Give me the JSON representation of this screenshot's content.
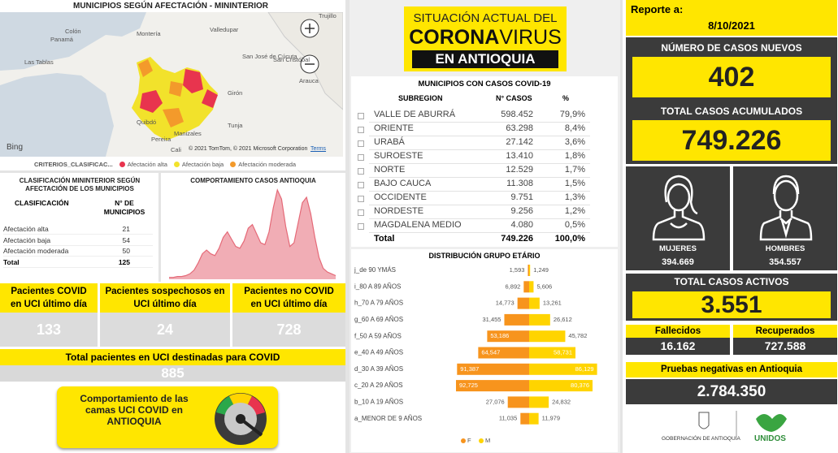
{
  "map": {
    "title": "MUNICIPIOS SEGÚN AFECTACIÓN - MININTERIOR",
    "places": [
      "Trujillo",
      "Colón",
      "Panamá",
      "Las Tablas",
      "Montería",
      "Valledupar",
      "San José de Cúcuta",
      "San Cristóbal",
      "Arauca",
      "Girón",
      "Quibdó",
      "Tunja",
      "Pereira",
      "Manizales",
      "Cali"
    ],
    "bing": "Bing",
    "attribution": "© 2021 TomTom, © 2021 Microsoft Corporation",
    "terms": "Terms",
    "legend_title": "CRITERIOS_CLASIFICAC...",
    "legend": [
      {
        "name": "Afectación alta",
        "color": "#e8344e"
      },
      {
        "name": "Afectación baja",
        "color": "#f2e22b"
      },
      {
        "name": "Afectación moderada",
        "color": "#f39a2b"
      }
    ]
  },
  "classification": {
    "title": "CLASIFICACIÓN MININTERIOR SEGÚN AFECTACIÓN DE LOS MUNICIPIOS",
    "headers": [
      "CLASIFICACIÓN",
      "N° DE MUNICIPIOS"
    ],
    "rows": [
      [
        "Afectación alta",
        "21"
      ],
      [
        "Afectación baja",
        "54"
      ],
      [
        "Afectación moderada",
        "50"
      ],
      [
        "Total",
        "125"
      ]
    ]
  },
  "chart_data": [
    {
      "type": "area",
      "title": "COMPORTAMIENTO CASOS ANTIOQUIA",
      "color": "#e56a78",
      "values": [
        2,
        2,
        3,
        3,
        4,
        6,
        10,
        18,
        28,
        32,
        28,
        26,
        34,
        46,
        52,
        44,
        36,
        34,
        42,
        56,
        60,
        50,
        40,
        38,
        52,
        78,
        98,
        88,
        58,
        36,
        40,
        62,
        84,
        90,
        72,
        46,
        24,
        12,
        8,
        6,
        4
      ]
    },
    {
      "type": "pyramid",
      "title": "DISTRIBUCIÓN GRUPO ETÁRIO",
      "categories": [
        "j_de 90 YMÁS",
        "i_80 A 89 AÑOS",
        "h_70 A 79 AÑOS",
        "g_60 A 69 AÑOS",
        "f_50 A 59 AÑOS",
        "e_40 A 49 AÑOS",
        "d_30 A 39 AÑOS",
        "c_20 A 29 AÑOS",
        "b_10 A 19 AÑOS",
        "a_MENOR DE 9 AÑOS"
      ],
      "series": [
        {
          "name": "F",
          "color": "#f7941d",
          "values": [
            1593,
            6892,
            14773,
            31455,
            53186,
            64547,
            91387,
            92725,
            27076,
            11035
          ],
          "value_labels": [
            "1,593",
            "6,892",
            "14,773",
            "31,455",
            "53,186",
            "64,547",
            "91,387",
            "92,725",
            "27,076",
            "11,035"
          ]
        },
        {
          "name": "M",
          "color": "#ffd400",
          "values": [
            1249,
            5606,
            13261,
            26612,
            45782,
            58731,
            86129,
            80376,
            24832,
            11979
          ],
          "value_labels": [
            "1,249",
            "5,606",
            "13,261",
            "26,612",
            "45,782",
            "58,731",
            "86,129",
            "80,376",
            "24,832",
            "11,979"
          ]
        }
      ]
    }
  ],
  "uci": {
    "cards": [
      {
        "label": "Pacientes COVID en UCI último día",
        "value": "133"
      },
      {
        "label": "Pacientes sospechosos en UCI último día",
        "value": "24"
      },
      {
        "label": "Pacientes no COVID en UCI último día",
        "value": "728"
      }
    ],
    "total_label": "Total pacientes en UCI destinadas para COVID",
    "total_value": "885",
    "button": "Comportamiento de las camas UCI COVID en ANTIOQUIA"
  },
  "header": {
    "line1": "SITUACIÓN ACTUAL DEL",
    "corona": "CORONA",
    "virus": "VIRUS",
    "line3": "EN ANTIOQUIA"
  },
  "municipios": {
    "title": "MUNICIPIOS CON CASOS COVID-19",
    "headers": [
      "SUBREGION",
      "N° CASOS",
      "%"
    ],
    "rows": [
      [
        "VALLE DE ABURRÁ",
        "598.452",
        "79,9%"
      ],
      [
        "ORIENTE",
        "63.298",
        "8,4%"
      ],
      [
        "URABÁ",
        "27.142",
        "3,6%"
      ],
      [
        "SUROESTE",
        "13.410",
        "1,8%"
      ],
      [
        "NORTE",
        "12.529",
        "1,7%"
      ],
      [
        "BAJO CAUCA",
        "11.308",
        "1,5%"
      ],
      [
        "OCCIDENTE",
        "9.751",
        "1,3%"
      ],
      [
        "NORDESTE",
        "9.256",
        "1,2%"
      ],
      [
        "MAGDALENA MEDIO",
        "4.080",
        "0,5%"
      ]
    ],
    "total": [
      "Total",
      "749.226",
      "100,0%"
    ]
  },
  "report": {
    "label": "Reporte a:",
    "date": "8/10/2021",
    "new_label": "NÚMERO DE CASOS NUEVOS",
    "new_value": "402",
    "total_label": "TOTAL CASOS ACUMULADOS",
    "total_value": "749.226",
    "women_label": "MUJERES",
    "women_value": "394.669",
    "men_label": "HOMBRES",
    "men_value": "354.557",
    "active_label": "TOTAL CASOS ACTIVOS",
    "active_value": "3.551",
    "deaths_label": "Fallecidos",
    "deaths_value": "16.162",
    "recovered_label": "Recuperados",
    "recovered_value": "727.588",
    "negative_label": "Pruebas negativas en Antioquia",
    "negative_value": "2.784.350",
    "logo_left": "GOBERNACIÓN DE ANTIOQUIA",
    "logo_right": "UNIDOS"
  }
}
